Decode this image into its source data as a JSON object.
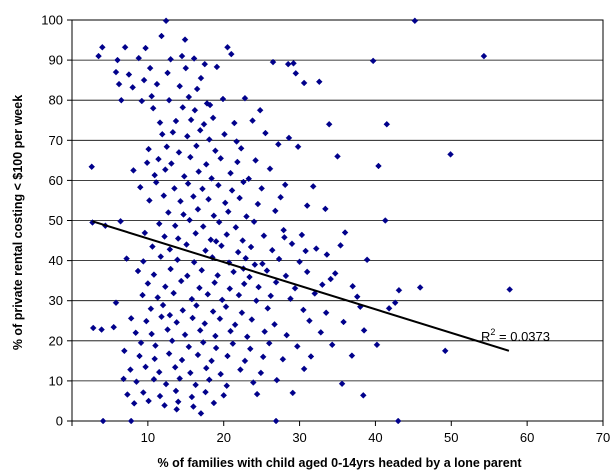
{
  "chart_data": {
    "type": "scatter",
    "xlabel": "% of families with child aged 0-14yrs headed by a lone parent",
    "ylabel": "% of private rental costing < $100 per week",
    "xlim": [
      0,
      70
    ],
    "ylim": [
      0,
      100
    ],
    "xticks": [
      10,
      20,
      30,
      40,
      50,
      60,
      70
    ],
    "yticks": [
      0,
      10,
      20,
      30,
      40,
      50,
      60,
      70,
      80,
      90,
      100
    ],
    "grid": "horizontal",
    "marker": "diamond",
    "marker_color": "#00008B",
    "trendline": {
      "type": "linear",
      "color": "#000000",
      "x": [
        2.7,
        57.6
      ],
      "y": [
        49.8,
        17.5
      ],
      "r2_label": "R",
      "r2_exponent": "2",
      "r2_value": " = 0.0373"
    },
    "points": [
      [
        12.4,
        99.8
      ],
      [
        45.2,
        99.8
      ],
      [
        54.3,
        91.0
      ],
      [
        39.7,
        89.8
      ],
      [
        4.0,
        93.2
      ],
      [
        7.0,
        93.2
      ],
      [
        9.7,
        93.0
      ],
      [
        11.8,
        96.0
      ],
      [
        20.5,
        93.2
      ],
      [
        21.0,
        91.5
      ],
      [
        3.5,
        91.0
      ],
      [
        6.0,
        90.0
      ],
      [
        8.8,
        90.5
      ],
      [
        13.0,
        90.2
      ],
      [
        14.5,
        91.0
      ],
      [
        16.1,
        90.4
      ],
      [
        17.5,
        89.0
      ],
      [
        26.5,
        89.5
      ],
      [
        28.5,
        89.0
      ],
      [
        29.2,
        89.2
      ],
      [
        5.8,
        87.0
      ],
      [
        7.5,
        86.4
      ],
      [
        10.3,
        88.0
      ],
      [
        12.6,
        86.8
      ],
      [
        15.0,
        88.0
      ],
      [
        17.0,
        85.5
      ],
      [
        19.1,
        88.3
      ],
      [
        6.2,
        84.0
      ],
      [
        8.0,
        83.2
      ],
      [
        9.5,
        85.0
      ],
      [
        11.2,
        84.0
      ],
      [
        14.2,
        83.5
      ],
      [
        16.5,
        82.8
      ],
      [
        29.5,
        86.7
      ],
      [
        30.6,
        84.3
      ],
      [
        32.6,
        84.6
      ],
      [
        6.5,
        80.0
      ],
      [
        9.2,
        79.8
      ],
      [
        10.5,
        81.0
      ],
      [
        12.8,
        80.0
      ],
      [
        15.4,
        80.8
      ],
      [
        17.8,
        79.2
      ],
      [
        19.9,
        80.3
      ],
      [
        22.8,
        80.5
      ],
      [
        10.7,
        78.0
      ],
      [
        14.6,
        78.2
      ],
      [
        16.2,
        77.5
      ],
      [
        18.2,
        78.8
      ],
      [
        24.8,
        77.5
      ],
      [
        11.6,
        74.4
      ],
      [
        13.7,
        74.8
      ],
      [
        15.7,
        75.1
      ],
      [
        17.4,
        74.0
      ],
      [
        18.6,
        75.6
      ],
      [
        21.4,
        74.3
      ],
      [
        23.8,
        74.9
      ],
      [
        41.5,
        74.0
      ],
      [
        11.9,
        71.5
      ],
      [
        13.3,
        72.0
      ],
      [
        15.2,
        71.0
      ],
      [
        16.9,
        72.5
      ],
      [
        18.1,
        70.2
      ],
      [
        20.1,
        71.5
      ],
      [
        25.5,
        71.8
      ],
      [
        28.6,
        70.6
      ],
      [
        10.1,
        67.8
      ],
      [
        12.5,
        68.4
      ],
      [
        14.1,
        67.0
      ],
      [
        16.4,
        68.6
      ],
      [
        18.9,
        67.4
      ],
      [
        22.3,
        68.0
      ],
      [
        27.2,
        69.0
      ],
      [
        29.8,
        68.4
      ],
      [
        49.9,
        66.5
      ],
      [
        9.9,
        64.4
      ],
      [
        11.4,
        65.3
      ],
      [
        13.1,
        64.2
      ],
      [
        15.6,
        65.8
      ],
      [
        17.7,
        64.0
      ],
      [
        19.6,
        65.5
      ],
      [
        21.8,
        64.6
      ],
      [
        24.2,
        65.0
      ],
      [
        35.0,
        66.0
      ],
      [
        40.4,
        63.6
      ],
      [
        2.6,
        63.4
      ],
      [
        8.1,
        62.5
      ],
      [
        10.9,
        61.3
      ],
      [
        12.3,
        62.7
      ],
      [
        14.8,
        61.0
      ],
      [
        16.7,
        62.2
      ],
      [
        18.4,
        60.5
      ],
      [
        20.9,
        61.8
      ],
      [
        23.3,
        60.4
      ],
      [
        26.1,
        62.9
      ],
      [
        9.0,
        58.3
      ],
      [
        11.1,
        59.5
      ],
      [
        13.5,
        58.0
      ],
      [
        15.3,
        59.2
      ],
      [
        17.2,
        57.9
      ],
      [
        19.3,
        58.8
      ],
      [
        21.1,
        57.5
      ],
      [
        22.6,
        59.6
      ],
      [
        25.0,
        58.0
      ],
      [
        31.8,
        58.5
      ],
      [
        10.2,
        55.0
      ],
      [
        12.1,
        56.2
      ],
      [
        14.3,
        54.8
      ],
      [
        16.0,
        56.0
      ],
      [
        18.0,
        55.3
      ],
      [
        20.2,
        54.4
      ],
      [
        22.1,
        55.6
      ],
      [
        24.5,
        54.1
      ],
      [
        27.5,
        55.8
      ],
      [
        12.7,
        52.0
      ],
      [
        14.7,
        51.5
      ],
      [
        16.6,
        52.8
      ],
      [
        18.7,
        51.2
      ],
      [
        20.6,
        52.2
      ],
      [
        23.0,
        51.0
      ],
      [
        26.8,
        52.4
      ],
      [
        33.4,
        52.9
      ],
      [
        6.4,
        49.8
      ],
      [
        11.5,
        49.2
      ],
      [
        13.6,
        48.7
      ],
      [
        15.5,
        50.1
      ],
      [
        17.3,
        48.5
      ],
      [
        19.4,
        49.6
      ],
      [
        21.6,
        48.3
      ],
      [
        24.0,
        49.7
      ],
      [
        41.3,
        50.0
      ],
      [
        2.7,
        49.5
      ],
      [
        4.4,
        48.7
      ],
      [
        9.6,
        46.9
      ],
      [
        12.2,
        46.0
      ],
      [
        14.0,
        45.5
      ],
      [
        16.3,
        46.8
      ],
      [
        18.3,
        45.2
      ],
      [
        20.4,
        46.5
      ],
      [
        22.5,
        45.0
      ],
      [
        25.3,
        46.2
      ],
      [
        28.0,
        45.8
      ],
      [
        30.3,
        46.4
      ],
      [
        36.0,
        47.0
      ],
      [
        10.6,
        43.5
      ],
      [
        12.9,
        42.8
      ],
      [
        15.1,
        44.0
      ],
      [
        17.6,
        42.5
      ],
      [
        19.7,
        43.7
      ],
      [
        21.9,
        42.1
      ],
      [
        23.6,
        43.4
      ],
      [
        26.4,
        42.6
      ],
      [
        29.0,
        44.2
      ],
      [
        32.2,
        43.0
      ],
      [
        35.4,
        43.8
      ],
      [
        7.2,
        40.5
      ],
      [
        9.4,
        39.8
      ],
      [
        11.7,
        41.0
      ],
      [
        13.9,
        40.2
      ],
      [
        16.1,
        39.6
      ],
      [
        18.5,
        40.8
      ],
      [
        20.7,
        39.5
      ],
      [
        22.9,
        40.6
      ],
      [
        25.1,
        39.2
      ],
      [
        27.3,
        40.4
      ],
      [
        30.0,
        39.7
      ],
      [
        33.6,
        41.5
      ],
      [
        38.9,
        40.2
      ],
      [
        8.7,
        37.4
      ],
      [
        10.8,
        36.5
      ],
      [
        13.0,
        37.9
      ],
      [
        15.2,
        36.2
      ],
      [
        17.1,
        37.6
      ],
      [
        19.2,
        36.3
      ],
      [
        21.3,
        37.2
      ],
      [
        23.4,
        35.9
      ],
      [
        25.7,
        37.5
      ],
      [
        28.2,
        36.2
      ],
      [
        31.0,
        37.2
      ],
      [
        34.7,
        36.8
      ],
      [
        10.0,
        34.3
      ],
      [
        12.3,
        33.5
      ],
      [
        14.4,
        34.9
      ],
      [
        16.8,
        33.2
      ],
      [
        18.8,
        34.5
      ],
      [
        20.8,
        33.0
      ],
      [
        22.7,
        34.2
      ],
      [
        24.6,
        33.4
      ],
      [
        26.9,
        34.6
      ],
      [
        29.4,
        33.1
      ],
      [
        33.0,
        34.0
      ],
      [
        37.0,
        33.6
      ],
      [
        9.3,
        31.4
      ],
      [
        11.3,
        30.8
      ],
      [
        13.4,
        31.9
      ],
      [
        15.8,
        30.4
      ],
      [
        17.9,
        31.6
      ],
      [
        19.8,
        30.2
      ],
      [
        22.0,
        31.4
      ],
      [
        24.3,
        30.0
      ],
      [
        26.2,
        31.2
      ],
      [
        28.8,
        30.5
      ],
      [
        32.0,
        31.8
      ],
      [
        43.1,
        32.6
      ],
      [
        57.7,
        32.8
      ],
      [
        5.8,
        29.5
      ],
      [
        10.4,
        28.0
      ],
      [
        12.0,
        28.9
      ],
      [
        14.6,
        27.6
      ],
      [
        16.4,
        28.8
      ],
      [
        18.6,
        27.3
      ],
      [
        20.3,
        28.5
      ],
      [
        22.4,
        27.0
      ],
      [
        25.8,
        28.1
      ],
      [
        30.5,
        27.7
      ],
      [
        38.0,
        28.5
      ],
      [
        42.6,
        29.5
      ],
      [
        7.8,
        25.6
      ],
      [
        9.8,
        24.9
      ],
      [
        11.8,
        26.0
      ],
      [
        13.8,
        24.6
      ],
      [
        15.9,
        25.7
      ],
      [
        17.5,
        24.3
      ],
      [
        19.5,
        25.5
      ],
      [
        21.5,
        24.0
      ],
      [
        23.7,
        25.3
      ],
      [
        26.7,
        24.1
      ],
      [
        31.3,
        25.0
      ],
      [
        35.8,
        24.7
      ],
      [
        2.8,
        23.2
      ],
      [
        5.5,
        23.4
      ],
      [
        8.4,
        22.0
      ],
      [
        10.5,
        21.7
      ],
      [
        12.6,
        22.8
      ],
      [
        14.9,
        21.5
      ],
      [
        16.9,
        22.6
      ],
      [
        18.9,
        21.2
      ],
      [
        20.9,
        22.4
      ],
      [
        23.1,
        21.0
      ],
      [
        25.4,
        22.3
      ],
      [
        28.3,
        21.4
      ],
      [
        32.8,
        22.1
      ],
      [
        38.5,
        22.6
      ],
      [
        9.1,
        19.5
      ],
      [
        11.0,
        18.8
      ],
      [
        13.2,
        20.0
      ],
      [
        15.4,
        18.5
      ],
      [
        17.3,
        19.6
      ],
      [
        19.0,
        18.2
      ],
      [
        21.2,
        19.3
      ],
      [
        23.5,
        18.0
      ],
      [
        26.0,
        19.4
      ],
      [
        29.7,
        18.6
      ],
      [
        34.3,
        19.0
      ],
      [
        36.9,
        16.3
      ],
      [
        40.2,
        19.0
      ],
      [
        49.2,
        17.5
      ],
      [
        8.9,
        16.2
      ],
      [
        10.9,
        15.5
      ],
      [
        12.8,
        16.8
      ],
      [
        14.5,
        15.2
      ],
      [
        16.6,
        16.5
      ],
      [
        18.4,
        15.0
      ],
      [
        20.5,
        16.2
      ],
      [
        22.8,
        15.0
      ],
      [
        25.2,
        16.0
      ],
      [
        27.8,
        15.4
      ],
      [
        31.5,
        16.1
      ],
      [
        7.7,
        12.8
      ],
      [
        9.7,
        13.5
      ],
      [
        11.5,
        12.2
      ],
      [
        13.6,
        13.4
      ],
      [
        15.6,
        12.0
      ],
      [
        17.7,
        13.2
      ],
      [
        19.6,
        11.7
      ],
      [
        22.2,
        12.8
      ],
      [
        24.9,
        12.0
      ],
      [
        30.6,
        13.0
      ],
      [
        6.8,
        10.5
      ],
      [
        8.5,
        9.8
      ],
      [
        10.8,
        10.4
      ],
      [
        12.4,
        9.2
      ],
      [
        14.2,
        10.6
      ],
      [
        16.3,
        9.0
      ],
      [
        18.1,
        10.3
      ],
      [
        20.4,
        8.8
      ],
      [
        23.9,
        9.6
      ],
      [
        27.0,
        10.2
      ],
      [
        35.6,
        9.3
      ],
      [
        7.3,
        6.6
      ],
      [
        9.4,
        7.1
      ],
      [
        11.6,
        6.2
      ],
      [
        13.7,
        7.5
      ],
      [
        15.8,
        6.0
      ],
      [
        17.6,
        7.2
      ],
      [
        20.0,
        6.4
      ],
      [
        24.4,
        6.7
      ],
      [
        29.1,
        7.0
      ],
      [
        38.4,
        6.4
      ],
      [
        8.2,
        4.4
      ],
      [
        10.1,
        5.0
      ],
      [
        12.2,
        3.9
      ],
      [
        14.0,
        4.8
      ],
      [
        16.0,
        3.6
      ],
      [
        18.7,
        4.5
      ],
      [
        4.1,
        0.0
      ],
      [
        7.8,
        0.0
      ],
      [
        26.9,
        0.0
      ],
      [
        43.0,
        0.0
      ],
      [
        13.8,
        2.9
      ],
      [
        17.0,
        1.9
      ],
      [
        22.6,
        38.0
      ],
      [
        24.1,
        39.0
      ],
      [
        19.0,
        44.8
      ],
      [
        27.9,
        47.6
      ],
      [
        30.8,
        42.4
      ],
      [
        34.1,
        35.4
      ],
      [
        33.5,
        27.0
      ],
      [
        37.6,
        31.0
      ],
      [
        41.8,
        28.1
      ],
      [
        45.9,
        33.3
      ],
      [
        3.9,
        22.8
      ],
      [
        6.9,
        17.5
      ],
      [
        12.9,
        26.4
      ],
      [
        28.1,
        58.9
      ],
      [
        33.9,
        74.0
      ],
      [
        31.0,
        53.7
      ],
      [
        21.7,
        69.7
      ],
      [
        14.9,
        95.1
      ]
    ]
  }
}
